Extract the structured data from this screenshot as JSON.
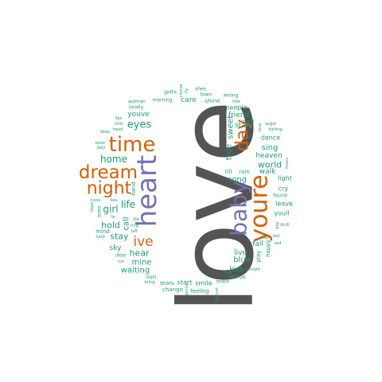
{
  "colors": {
    "orange": "#d95f02",
    "purple": "#7570b3",
    "gray": "#545454",
    "teal": "#1b9e77"
  },
  "words": [
    {
      "text": "love",
      "color": "gray"
    },
    {
      "text": "heart",
      "color": "purple"
    },
    {
      "text": "baby",
      "color": "purple"
    },
    {
      "text": "youre",
      "color": "orange"
    },
    {
      "text": "time",
      "color": "orange"
    },
    {
      "text": "dream",
      "color": "orange"
    },
    {
      "text": "night",
      "color": "orange"
    },
    {
      "text": "day",
      "color": "orange"
    },
    {
      "text": "ive",
      "color": "orange"
    },
    {
      "text": "eyes",
      "color": "teal"
    },
    {
      "text": "home",
      "color": "teal"
    },
    {
      "text": "life",
      "color": "teal"
    },
    {
      "text": "girl",
      "color": "teal"
    },
    {
      "text": "hold",
      "color": "teal"
    },
    {
      "text": "stay",
      "color": "teal"
    },
    {
      "text": "hear",
      "color": "teal"
    },
    {
      "text": "mine",
      "color": "teal"
    },
    {
      "text": "waiting",
      "color": "teal"
    },
    {
      "text": "sky",
      "color": "teal"
    },
    {
      "text": "youve",
      "color": "teal"
    },
    {
      "text": "care",
      "color": "teal"
    },
    {
      "text": "shine",
      "color": "teal"
    },
    {
      "text": "town",
      "color": "teal"
    },
    {
      "text": "shes",
      "color": "teal"
    },
    {
      "text": "gotta",
      "color": "teal"
    },
    {
      "text": "morning",
      "color": "teal"
    },
    {
      "text": "woman",
      "color": "teal"
    },
    {
      "text": "lonely",
      "color": "teal"
    },
    {
      "text": "wrong",
      "color": "teal"
    },
    {
      "text": "tree",
      "color": "teal"
    },
    {
      "text": "people",
      "color": "teal"
    },
    {
      "text": "friend",
      "color": "teal"
    },
    {
      "text": "stars",
      "color": "teal"
    },
    {
      "text": "sweet",
      "color": "teal"
    },
    {
      "text": "true",
      "color": "teal"
    },
    {
      "text": "sing",
      "color": "teal"
    },
    {
      "text": "heaven",
      "color": "teal"
    },
    {
      "text": "world",
      "color": "teal"
    },
    {
      "text": "walk",
      "color": "teal"
    },
    {
      "text": "rain",
      "color": "teal"
    },
    {
      "text": "till",
      "color": "teal"
    },
    {
      "text": "song",
      "color": "teal"
    },
    {
      "text": "dance",
      "color": "teal"
    },
    {
      "text": "light",
      "color": "teal"
    },
    {
      "text": "cry",
      "color": "teal"
    },
    {
      "text": "found",
      "color": "teal"
    },
    {
      "text": "leave",
      "color": "teal"
    },
    {
      "text": "youll",
      "color": "teal"
    },
    {
      "text": "fall",
      "color": "teal"
    },
    {
      "text": "play",
      "color": "teal"
    },
    {
      "text": "happy",
      "color": "teal"
    },
    {
      "text": "blue",
      "color": "teal"
    },
    {
      "text": "live",
      "color": "teal"
    },
    {
      "text": "kiss",
      "color": "teal"
    },
    {
      "text": "words",
      "color": "teal"
    },
    {
      "text": "tonight",
      "color": "teal"
    },
    {
      "text": "smile",
      "color": "teal"
    },
    {
      "text": "start",
      "color": "teal"
    },
    {
      "text": "tears",
      "color": "teal"
    },
    {
      "text": "change",
      "color": "teal"
    },
    {
      "text": "feeling",
      "color": "teal"
    },
    {
      "text": "moon",
      "color": "teal"
    },
    {
      "text": "sun",
      "color": "teal"
    },
    {
      "text": "bring",
      "color": "teal"
    },
    {
      "text": "call",
      "color": "teal"
    },
    {
      "text": "hand",
      "color": "teal"
    },
    {
      "text": "mind",
      "color": "teal"
    },
    {
      "text": "arms",
      "color": "teal"
    },
    {
      "text": "close",
      "color": "teal"
    },
    {
      "text": "hope",
      "color": "teal"
    },
    {
      "text": "lies",
      "color": "teal"
    },
    {
      "text": "die",
      "color": "teal"
    },
    {
      "text": "left",
      "color": "teal"
    },
    {
      "text": "ring",
      "color": "teal"
    },
    {
      "text": "lie",
      "color": "teal"
    },
    {
      "text": "hard",
      "color": "teal"
    },
    {
      "text": "dear",
      "color": "teal"
    },
    {
      "text": "run",
      "color": "teal"
    },
    {
      "text": "lover",
      "color": "teal"
    },
    {
      "text": "lady",
      "color": "teal"
    },
    {
      "text": "deep",
      "color": "teal"
    },
    {
      "text": "lord",
      "color": "teal"
    },
    {
      "text": "head",
      "color": "teal"
    },
    {
      "text": "lips",
      "color": "teal"
    },
    {
      "text": "chorus",
      "color": "teal"
    },
    {
      "text": "fly",
      "color": "teal"
    },
    {
      "text": "angel",
      "color": "teal"
    },
    {
      "text": "round",
      "color": "teal"
    },
    {
      "text": "darling",
      "color": "teal"
    },
    {
      "text": "love",
      "color": "teal"
    },
    {
      "text": "music",
      "color": "teal"
    },
    {
      "text": "boy",
      "color": "teal"
    },
    {
      "text": "thrill",
      "color": "teal"
    },
    {
      "text": "soul",
      "color": "teal"
    },
    {
      "text": "lost",
      "color": "teal"
    },
    {
      "text": "sad",
      "color": "teal"
    },
    {
      "text": "talk",
      "color": "teal"
    },
    {
      "text": "forever",
      "color": "teal"
    },
    {
      "text": "gonna",
      "color": "teal"
    }
  ]
}
